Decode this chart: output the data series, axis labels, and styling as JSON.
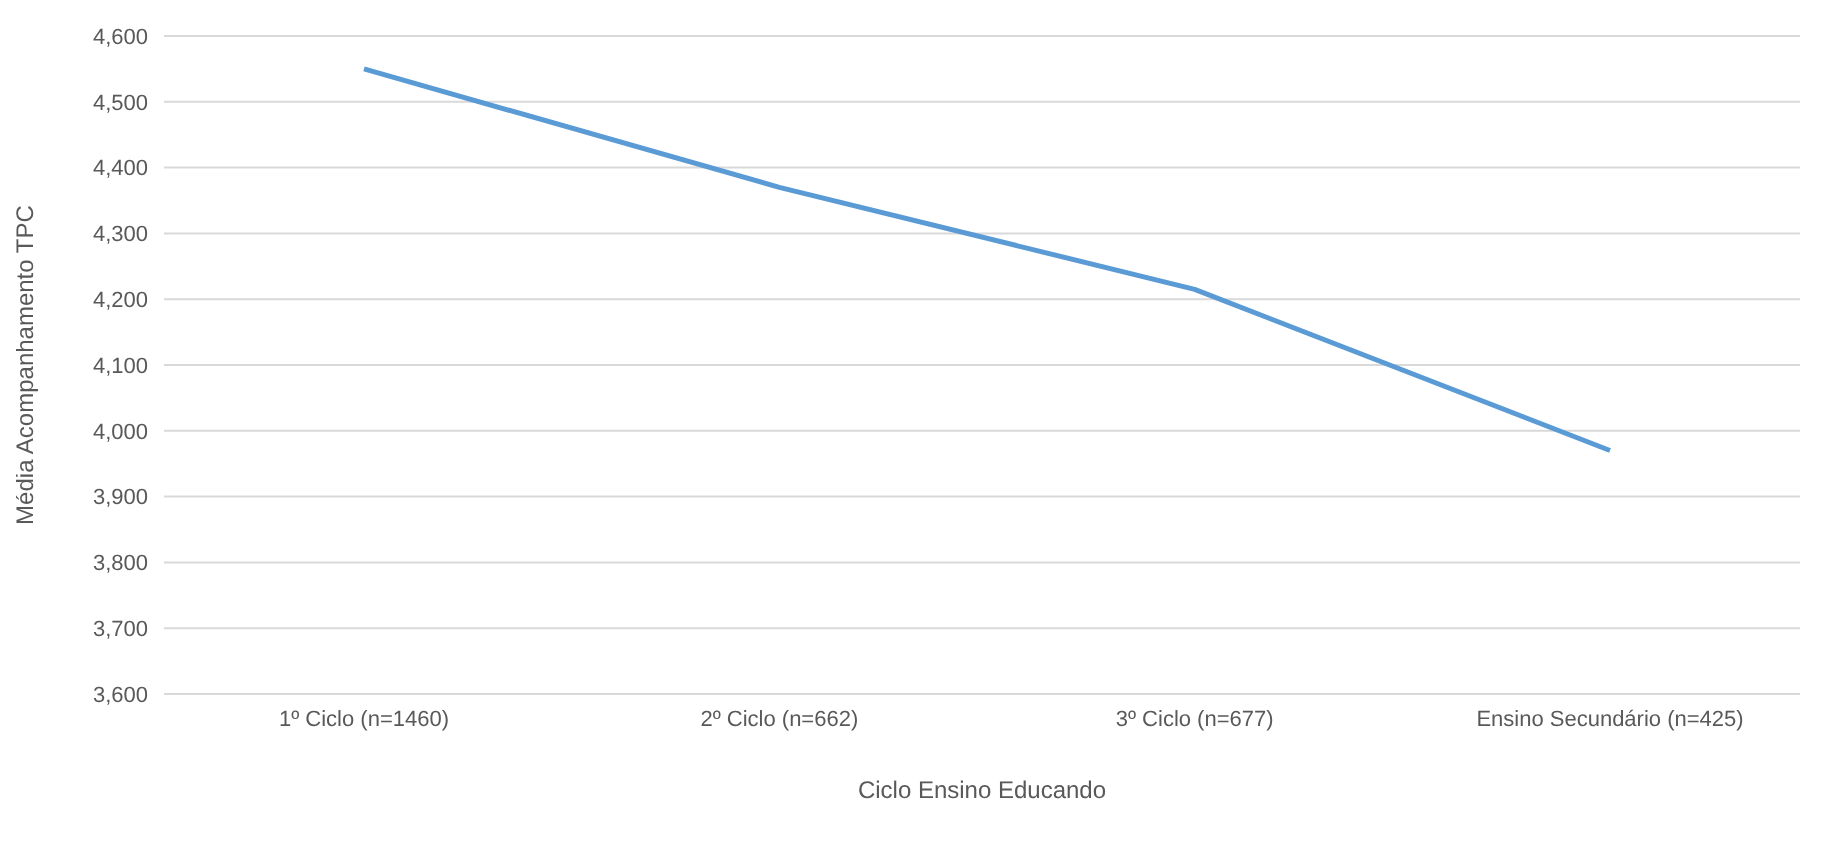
{
  "chart_data": {
    "type": "line",
    "xlabel": "Ciclo Ensino Educando",
    "ylabel": "Média Acompanhamento TPC",
    "categories": [
      "1º Ciclo (n=1460)",
      "2º Ciclo (n=662)",
      "3º Ciclo (n=677)",
      "Ensino Secundário (n=425)"
    ],
    "series": [
      {
        "color": "#5b9bd5",
        "values": [
          4550,
          4370,
          4215,
          3970
        ]
      }
    ],
    "ylim": [
      3600,
      4600
    ],
    "yticks": [
      {
        "value": 3600,
        "label": "3,600"
      },
      {
        "value": 3700,
        "label": "3,700"
      },
      {
        "value": 3800,
        "label": "3,800"
      },
      {
        "value": 3900,
        "label": "3,900"
      },
      {
        "value": 4000,
        "label": "4,000"
      },
      {
        "value": 4100,
        "label": "4,100"
      },
      {
        "value": 4200,
        "label": "4,200"
      },
      {
        "value": 4300,
        "label": "4,300"
      },
      {
        "value": 4400,
        "label": "4,400"
      },
      {
        "value": 4500,
        "label": "4,500"
      },
      {
        "value": 4600,
        "label": "4,600"
      }
    ],
    "grid": "y",
    "marker": "none",
    "legend": false
  }
}
